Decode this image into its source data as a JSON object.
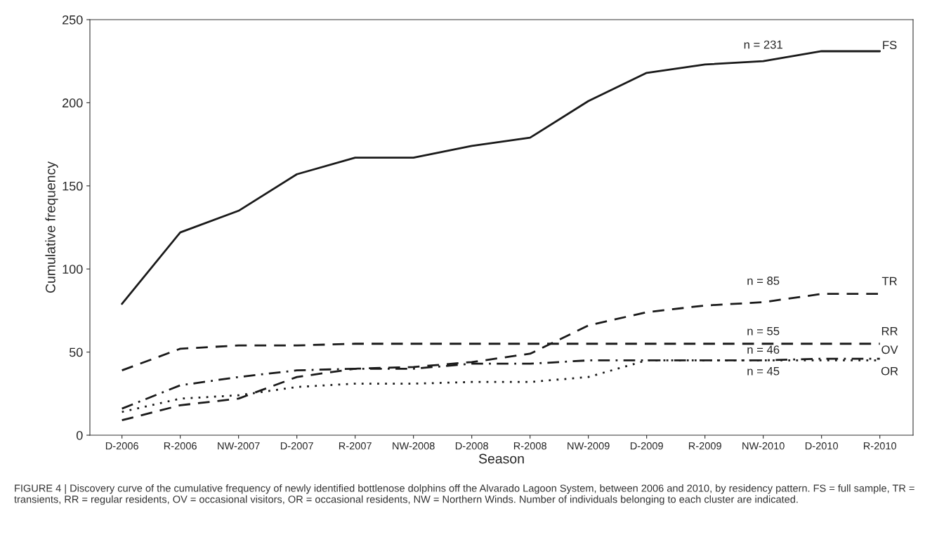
{
  "chart_data": {
    "type": "line",
    "xlabel": "Season",
    "ylabel": "Cumulative frequency",
    "categories": [
      "D-2006",
      "R-2006",
      "NW-2007",
      "D-2007",
      "R-2007",
      "NW-2008",
      "D-2008",
      "R-2008",
      "NW-2009",
      "D-2009",
      "R-2009",
      "NW-2010",
      "D-2010",
      "R-2010"
    ],
    "series": [
      {
        "name": "FS",
        "color": "#1a1a1a",
        "line_style": "solid",
        "values": [
          79,
          122,
          135,
          157,
          167,
          167,
          174,
          179,
          201,
          218,
          223,
          225,
          231,
          231
        ]
      },
      {
        "name": "TR",
        "color": "#1a1a1a",
        "line_style": "dashed",
        "values": [
          9,
          18,
          22,
          35,
          40,
          41,
          44,
          49,
          66,
          74,
          78,
          80,
          85,
          85
        ]
      },
      {
        "name": "RR",
        "color": "#1a1a1a",
        "line_style": "dashed",
        "values": [
          39,
          52,
          54,
          54,
          55,
          55,
          55,
          55,
          55,
          55,
          55,
          55,
          55,
          55
        ]
      },
      {
        "name": "OV",
        "color": "#1a1a1a",
        "line_style": "dashdot",
        "values": [
          16,
          30,
          35,
          39,
          40,
          40,
          43,
          43,
          45,
          45,
          45,
          45,
          46,
          46
        ]
      },
      {
        "name": "OR",
        "color": "#1a1a1a",
        "line_style": "dotted",
        "values": [
          14,
          22,
          24,
          29,
          31,
          31,
          32,
          32,
          35,
          45,
          45,
          45,
          45,
          45
        ]
      }
    ],
    "ylim": [
      0,
      250
    ],
    "yticks": [
      0,
      50,
      100,
      150,
      200,
      250
    ],
    "grid": false,
    "legend": false,
    "marker": "none",
    "annotations": [
      "n = 231",
      "n = 85",
      "n = 55",
      "n = 46",
      "n = 45",
      "FIGURE 4 | Discovery curve of the cumulative frequency of newly identified bottlenose dolphins off the Alvarado Lagoon System, between 2006 and 2010, by residency pattern. FS = full sample, TR = transients, RR = regular residents, OV = occasional visitors, OR = occasional residents, NW = Northern Winds. Number of individuals belonging to each cluster are indicated."
    ]
  }
}
